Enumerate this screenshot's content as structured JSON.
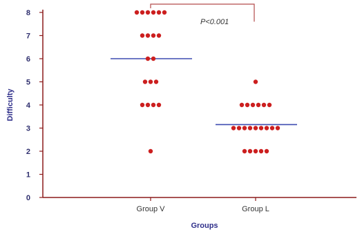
{
  "chart_data": {
    "type": "scatter",
    "xlabel": "Groups",
    "ylabel": "Difficulty",
    "categories": [
      "Group V",
      "Group L"
    ],
    "ylim": [
      0,
      8
    ],
    "yticks": [
      0,
      1,
      2,
      3,
      4,
      5,
      6,
      7,
      8
    ],
    "grid": false,
    "series": [
      {
        "category": "Group V",
        "values": [
          8,
          8,
          8,
          8,
          8,
          8,
          7,
          7,
          7,
          7,
          6,
          6,
          5,
          5,
          5,
          4,
          4,
          4,
          4,
          2
        ],
        "mean": 6.0
      },
      {
        "category": "Group L",
        "values": [
          5,
          4,
          4,
          4,
          4,
          4,
          4,
          3,
          3,
          3,
          3,
          3,
          3,
          3,
          3,
          3,
          2,
          2,
          2,
          2,
          2
        ],
        "mean": 3.15
      }
    ],
    "annotation": "P<0.001",
    "colors": {
      "points": "#cc1f1f",
      "mean_line": "#3d4bb0",
      "axis": "#8b1a1a",
      "bracket": "#b24a4a"
    }
  }
}
